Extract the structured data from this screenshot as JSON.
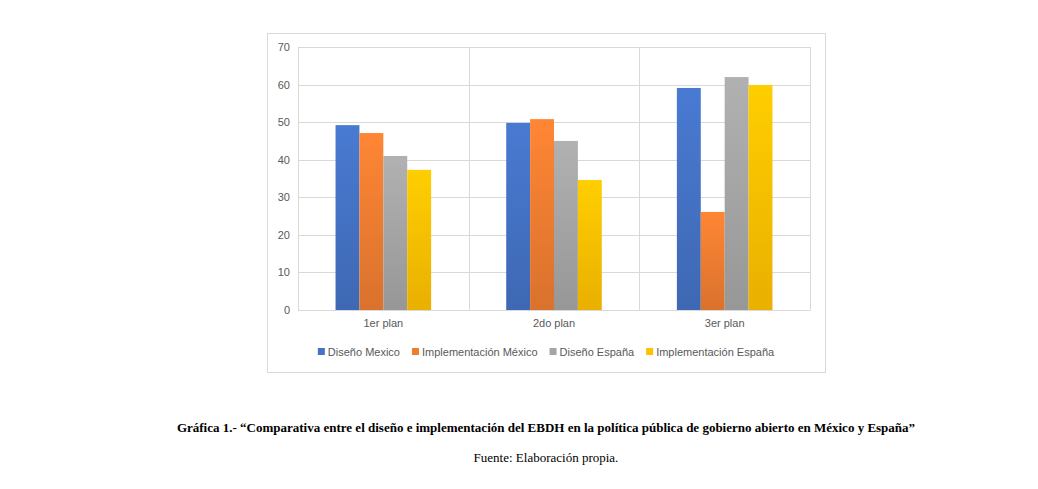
{
  "chart_data": {
    "type": "bar",
    "title": "Gráfica 1.- “Comparativa entre el diseño e implementación del EBDH en la política pública de gobierno abierto en México y España”",
    "subtitle": "Fuente: Elaboración propia.",
    "categories": [
      "1er plan",
      "2do plan",
      "3er plan"
    ],
    "series": [
      {
        "name": "Diseño Mexico",
        "color": "#4472c4",
        "values": [
          49.2,
          49.8,
          59.1
        ]
      },
      {
        "name": "Implementación México",
        "color": "#ed7d31",
        "values": [
          47.1,
          50.8,
          26.1
        ]
      },
      {
        "name": "Diseño España",
        "color": "#a5a5a5",
        "values": [
          41.0,
          45.0,
          62.0
        ]
      },
      {
        "name": "Implementación España",
        "color": "#ffc000",
        "values": [
          37.3,
          34.6,
          59.9
        ]
      }
    ],
    "ylim": [
      0,
      70
    ],
    "yticks": [
      0,
      10,
      20,
      30,
      40,
      50,
      60,
      70
    ],
    "grid": true,
    "legend": "bottom"
  }
}
